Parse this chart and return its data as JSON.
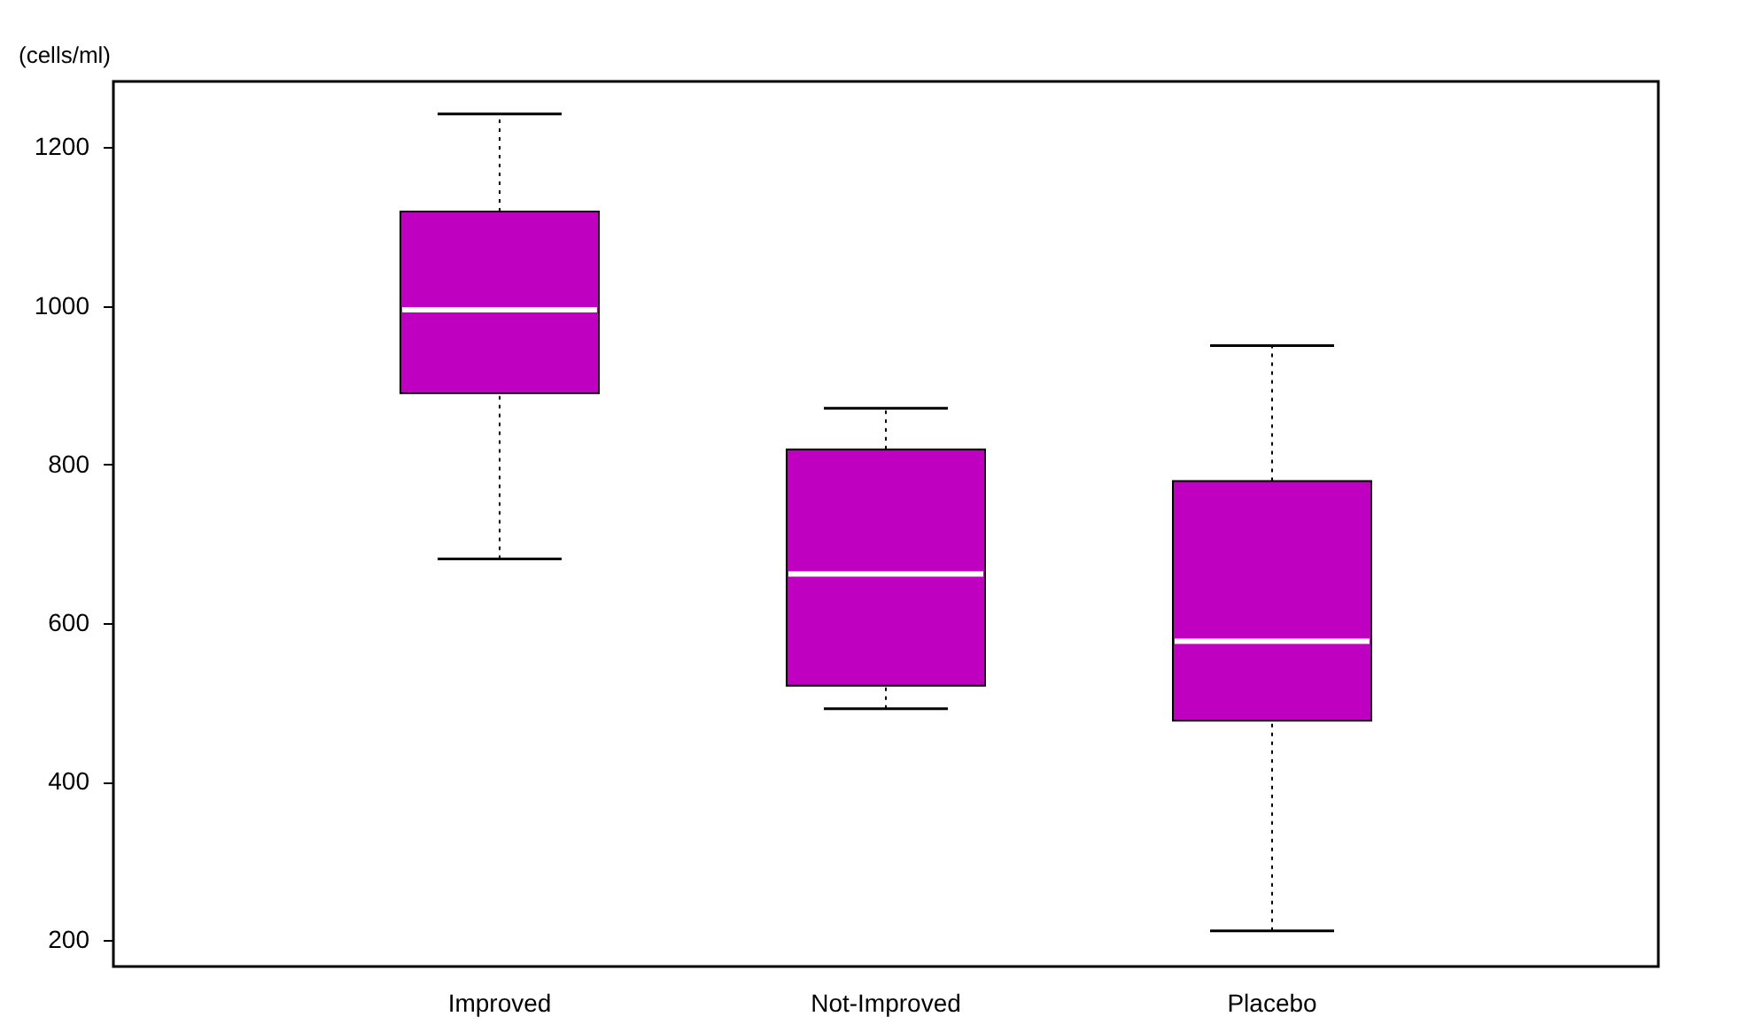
{
  "chart_data": {
    "type": "box",
    "ylabel": "(cells/ml)",
    "categories": [
      "Improved",
      "Not-Improved",
      "Placebo"
    ],
    "color": "#c000c0",
    "boxes": [
      {
        "low": 681,
        "q1": 890,
        "median": 995,
        "q3": 1119,
        "high": 1242
      },
      {
        "low": 492,
        "q1": 521,
        "median": 662,
        "q3": 819,
        "high": 871
      },
      {
        "low": 212,
        "q1": 477,
        "median": 577,
        "q3": 779,
        "high": 950
      }
    ],
    "ylim": [
      167,
      1283
    ],
    "yticks": [
      200,
      400,
      600,
      800,
      1000,
      1200
    ],
    "grid": false
  }
}
